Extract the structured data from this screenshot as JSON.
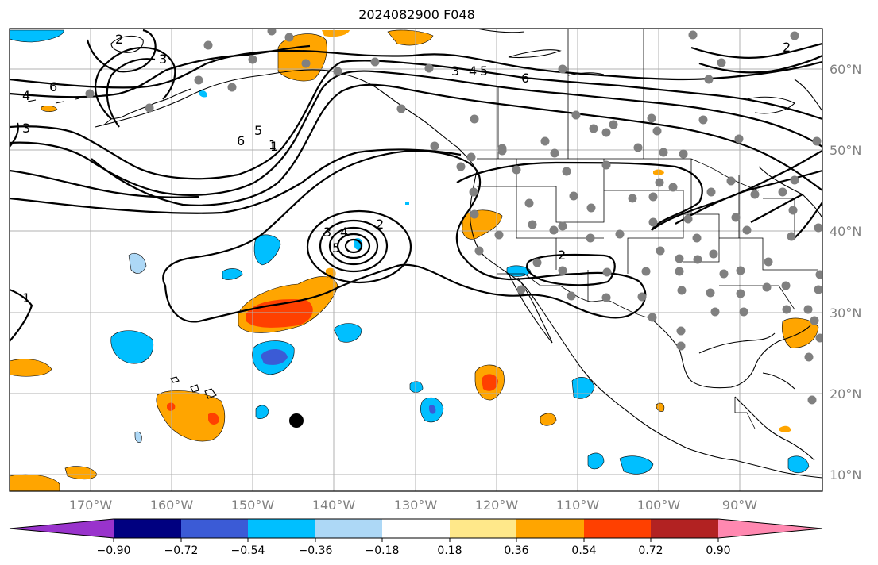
{
  "title": "2024082900 F048",
  "lat_ticks": [
    "60°N",
    "50°N",
    "40°N",
    "30°N",
    "20°N",
    "10°N"
  ],
  "lon_ticks": [
    "170°W",
    "160°W",
    "150°W",
    "140°W",
    "130°W",
    "120°W",
    "110°W",
    "100°W",
    "90°W"
  ],
  "colorbar": {
    "labels": [
      "−0.90",
      "−0.72",
      "−0.54",
      "−0.36",
      "−0.18",
      "0.18",
      "0.36",
      "0.54",
      "0.72",
      "0.90"
    ],
    "colors": [
      "#9933cc",
      "#000080",
      "#3b5bd6",
      "#00bfff",
      "#add8f6",
      "#ffffff",
      "#ffe88a",
      "#ffa500",
      "#ff4000",
      "#b22222",
      "#ff88b0"
    ]
  },
  "contour_labels": [
    "6",
    "4",
    "3",
    "2",
    "1",
    "3",
    "4",
    "5",
    "6",
    "6",
    "5",
    "1",
    "3",
    "4",
    "5",
    "2",
    "2",
    "1",
    "3",
    "2"
  ],
  "colors": {
    "contour": "#000000",
    "station_dot": "#808080",
    "grid": "#b0b0b0",
    "marker": "#000000"
  }
}
